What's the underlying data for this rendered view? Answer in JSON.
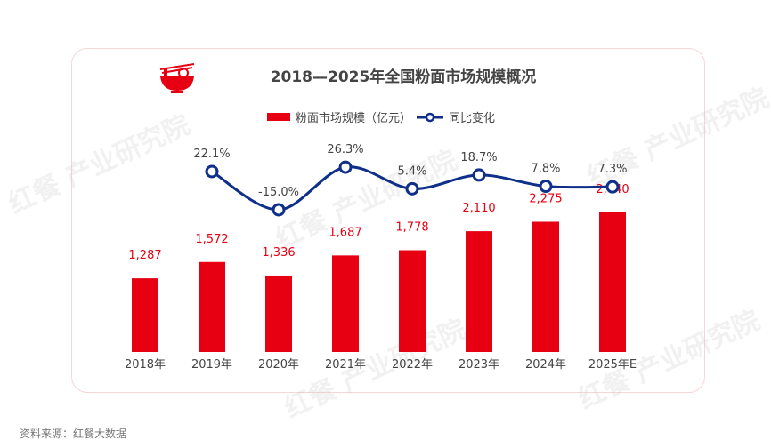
{
  "chart_data": {
    "type": "bar+line",
    "title": "2018—2025年全国粉面市场规模概况",
    "categories": [
      "2018年",
      "2019年",
      "2020年",
      "2021年",
      "2022年",
      "2023年",
      "2024年",
      "2025年E"
    ],
    "series": [
      {
        "name": "粉面市场规模（亿元）",
        "type": "bar",
        "color": "#e60012",
        "values": [
          1287,
          1572,
          1336,
          1687,
          1778,
          2110,
          2275,
          2440
        ],
        "labels": [
          "1,287",
          "1,572",
          "1,336",
          "1,687",
          "1,778",
          "2,110",
          "2,275",
          "2,440"
        ]
      },
      {
        "name": "同比变化",
        "type": "line",
        "color": "#0f2f8a",
        "values": [
          null,
          22.1,
          -15.0,
          26.3,
          5.4,
          18.7,
          7.8,
          7.3
        ],
        "labels": [
          "",
          "22.1%",
          "-15.0%",
          "26.3%",
          "5.4%",
          "18.7%",
          "7.8%",
          "7.3%"
        ]
      }
    ],
    "legend": "top-center",
    "grid": false
  },
  "source": "资料来源：红餐大数据",
  "watermark": "红餐 产业研究院"
}
